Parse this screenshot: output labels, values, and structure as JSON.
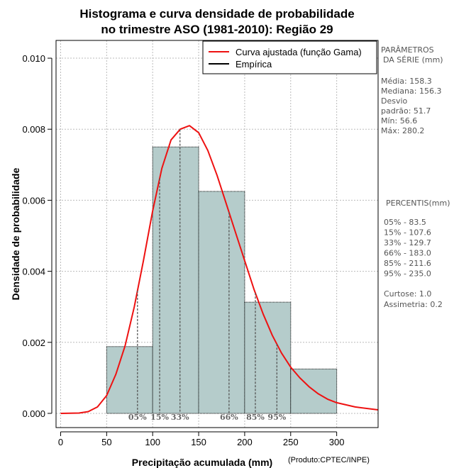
{
  "chart_data": {
    "type": "histogram",
    "title_line1": "Histograma e curva densidade de probabilidade",
    "title_line2": "no trimestre ASO (1981-2010): Região 29",
    "xlabel": "Precipitação acumulada (mm)",
    "ylabel": "Densidade de probabilidade",
    "credit": "(Produto:CPTEC/INPE)",
    "xlim": [
      -5,
      345
    ],
    "ylim": [
      -0.0004,
      0.0105
    ],
    "xticks": [
      0,
      50,
      100,
      150,
      200,
      250,
      300
    ],
    "xtick_labels": [
      "0",
      "50",
      "100",
      "150",
      "200",
      "250",
      "300"
    ],
    "yticks": [
      0.0,
      0.002,
      0.004,
      0.006,
      0.008,
      0.01
    ],
    "ytick_labels": [
      "0.000",
      "0.002",
      "0.004",
      "0.006",
      "0.008",
      "0.010"
    ],
    "bins": [
      {
        "start": 50,
        "end": 100,
        "density": 0.00188
      },
      {
        "start": 100,
        "end": 150,
        "density": 0.0075
      },
      {
        "start": 150,
        "end": 200,
        "density": 0.00625
      },
      {
        "start": 200,
        "end": 250,
        "density": 0.00313
      },
      {
        "start": 250,
        "end": 300,
        "density": 0.00125
      }
    ],
    "gamma_fit": {
      "label": "Curva ajustada (função Gama)",
      "x": [
        0,
        20,
        30,
        40,
        50,
        60,
        70,
        80,
        90,
        100,
        110,
        120,
        130,
        140,
        150,
        160,
        170,
        180,
        190,
        200,
        210,
        220,
        230,
        240,
        250,
        260,
        270,
        280,
        290,
        300,
        320,
        345
      ],
      "y": [
        0.0,
        1e-05,
        5e-05,
        0.00018,
        0.0005,
        0.0011,
        0.0019,
        0.003,
        0.0043,
        0.0057,
        0.0069,
        0.0077,
        0.008,
        0.0081,
        0.0079,
        0.0074,
        0.0067,
        0.0059,
        0.0051,
        0.0043,
        0.0035,
        0.0028,
        0.0022,
        0.0017,
        0.0013,
        0.001,
        0.00075,
        0.00055,
        0.0004,
        0.0003,
        0.00018,
        0.0001
      ]
    },
    "empirical_label": "Empírica",
    "percentile_markers": [
      {
        "label": "05%",
        "x": 83.5
      },
      {
        "label": "15%",
        "x": 107.6
      },
      {
        "label": "33%",
        "x": 129.7
      },
      {
        "label": "66%",
        "x": 183.0
      },
      {
        "label": "85%",
        "x": 211.6
      },
      {
        "label": "95%",
        "x": 235.0
      }
    ],
    "grid": true,
    "legend_position": "top-right",
    "colors": {
      "bar_fill": "#b5cccb",
      "curve": "#ee1111",
      "grid": "#bbbbbb",
      "marker": "#555555"
    }
  },
  "stats_panel": {
    "params_title_1": "PARÂMETROS",
    "params_title_2": "DA SÉRIE (mm)",
    "params": [
      "Média:  158.3",
      "Mediana:  156.3",
      "Desvio",
      "padrão:  51.7",
      "Mín:  56.6",
      "Máx:  280.2"
    ],
    "percentis_title": "PERCENTIS(mm)",
    "percentis": [
      "05% -   83.5",
      "15% -   107.6",
      "33% -   129.7",
      "66% -   183.0",
      "85% -   211.6",
      "95% -   235.0"
    ],
    "extras": [
      "Curtose:  1.0",
      "Assimetria:  0.2"
    ]
  }
}
